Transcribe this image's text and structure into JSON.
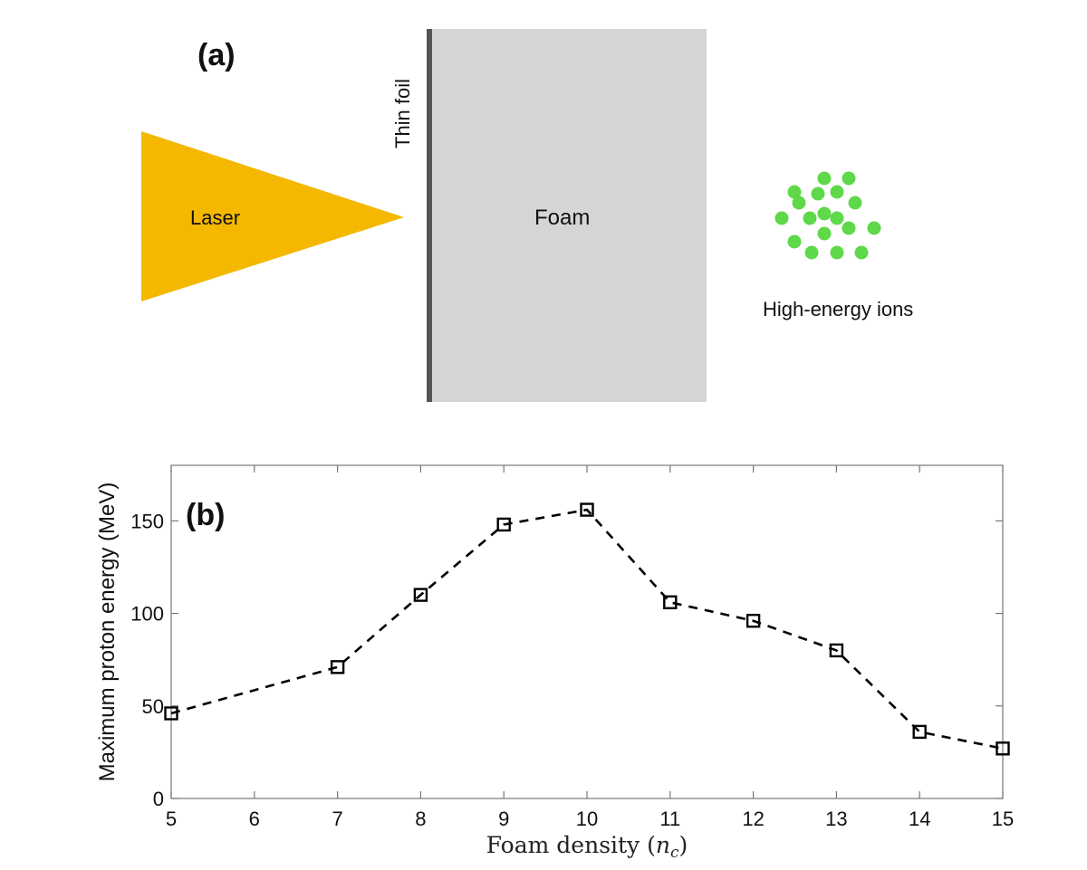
{
  "diagram": {
    "panel_label": "(a)",
    "foil_label": "Thin foil",
    "laser_label": "Laser",
    "foam_label": "Foam",
    "ions_label": "High-energy ions",
    "colors": {
      "laser": "#F4B800",
      "foil": "#555555",
      "foam": "#D6D4D6",
      "ions": "#5FD84A"
    }
  },
  "chart_data": {
    "type": "line",
    "panel_label": "(b)",
    "xlabel": "Foam density (n_c)",
    "xlabel_main": "Foam density (",
    "xlabel_var": "n",
    "xlabel_sub": "c",
    "xlabel_close": ")",
    "ylabel": "Maximum proton energy (MeV)",
    "xlim": [
      5,
      15
    ],
    "ylim": [
      0,
      180
    ],
    "xticks": [
      "5",
      "6",
      "7",
      "8",
      "9",
      "10",
      "11",
      "12",
      "13",
      "14",
      "15"
    ],
    "yticks": [
      "0",
      "50",
      "100",
      "150"
    ],
    "grid": false,
    "marker": "square",
    "line_style": "dashed",
    "color": "#000000",
    "x": [
      5,
      7,
      8,
      9,
      10,
      11,
      12,
      13,
      14,
      15
    ],
    "y": [
      46,
      71,
      110,
      148,
      156,
      106,
      96,
      80,
      36,
      27
    ]
  }
}
